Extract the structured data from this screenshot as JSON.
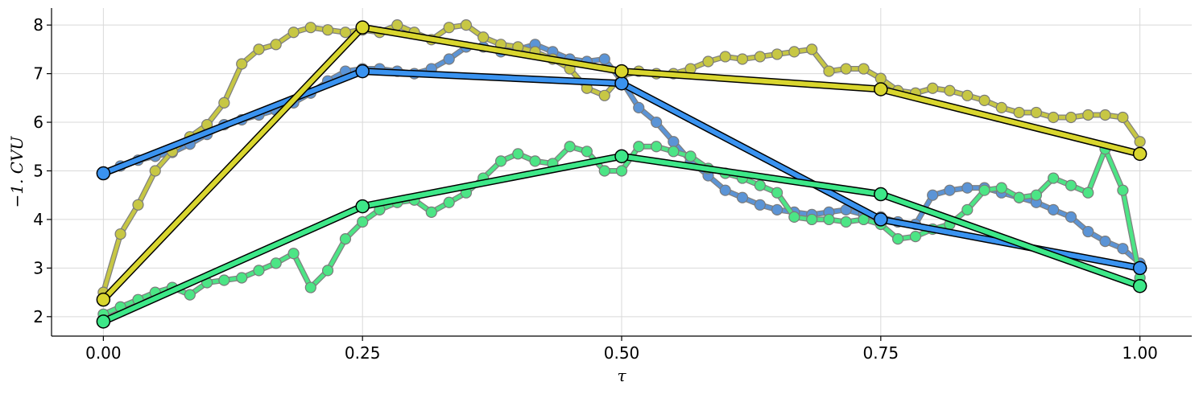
{
  "chart_data": {
    "type": "line",
    "xlabel": "τ",
    "ylabel": "−1. CVU",
    "xlim": [
      -0.1,
      2.1
    ],
    "ylim": [
      1.6,
      8.35
    ],
    "xticks": [
      "0.00",
      "0.25",
      "0.50",
      "0.75",
      "1.00"
    ],
    "xtick_positions": [
      0,
      0.5,
      1.0,
      1.5,
      2.0
    ],
    "yticks": [
      2,
      3,
      4,
      5,
      6,
      7,
      8
    ],
    "grid": true,
    "colors": {
      "blue_smooth": "#5b94d6",
      "blue_coarse": "#3a93f0",
      "yellow_smooth": "#c7c744",
      "yellow_coarse": "#d9d62e",
      "green_smooth": "#4ce585",
      "green_coarse": "#3de888",
      "edge": "#000000",
      "grid": "#d9d9d9"
    },
    "series": [
      {
        "kind": "smooth",
        "color": "#5b94d6",
        "x": [
          0.0,
          0.033,
          0.067,
          0.1,
          0.133,
          0.167,
          0.2,
          0.233,
          0.267,
          0.3,
          0.333,
          0.367,
          0.4,
          0.433,
          0.467,
          0.5,
          0.533,
          0.567,
          0.6,
          0.633,
          0.667,
          0.7,
          0.733,
          0.767,
          0.8,
          0.833,
          0.867,
          0.9,
          0.933,
          0.967,
          1.0,
          1.033,
          1.067,
          1.1,
          1.133,
          1.167,
          1.2,
          1.233,
          1.267,
          1.3,
          1.333,
          1.367,
          1.4,
          1.433,
          1.467,
          1.5,
          1.533,
          1.567,
          1.6,
          1.633,
          1.667,
          1.7,
          1.733,
          1.767,
          1.8,
          1.833,
          1.867,
          1.9,
          1.933,
          1.967,
          2.0
        ],
        "y": [
          4.95,
          5.1,
          5.22,
          5.3,
          5.38,
          5.55,
          5.75,
          5.95,
          6.05,
          6.15,
          6.25,
          6.4,
          6.6,
          6.85,
          7.05,
          7.1,
          7.1,
          7.05,
          7.0,
          7.1,
          7.3,
          7.55,
          7.55,
          7.45,
          7.5,
          7.6,
          7.45,
          7.3,
          7.25,
          7.3,
          6.85,
          6.3,
          6.0,
          5.6,
          5.2,
          4.9,
          4.6,
          4.45,
          4.3,
          4.2,
          4.15,
          4.1,
          4.15,
          4.2,
          4.1,
          4.05,
          3.95,
          3.9,
          4.5,
          4.6,
          4.65,
          4.65,
          4.55,
          4.45,
          4.35,
          4.2,
          4.05,
          3.75,
          3.55,
          3.4,
          3.1
        ]
      },
      {
        "kind": "smooth",
        "color": "#c7c744",
        "x": [
          0.0,
          0.033,
          0.067,
          0.1,
          0.133,
          0.167,
          0.2,
          0.233,
          0.267,
          0.3,
          0.333,
          0.367,
          0.4,
          0.433,
          0.467,
          0.5,
          0.533,
          0.567,
          0.6,
          0.633,
          0.667,
          0.7,
          0.733,
          0.767,
          0.8,
          0.833,
          0.867,
          0.9,
          0.933,
          0.967,
          1.0,
          1.033,
          1.067,
          1.1,
          1.133,
          1.167,
          1.2,
          1.233,
          1.267,
          1.3,
          1.333,
          1.367,
          1.4,
          1.433,
          1.467,
          1.5,
          1.533,
          1.567,
          1.6,
          1.633,
          1.667,
          1.7,
          1.733,
          1.767,
          1.8,
          1.833,
          1.867,
          1.9,
          1.933,
          1.967,
          2.0
        ],
        "y": [
          2.5,
          3.7,
          4.3,
          5.0,
          5.4,
          5.7,
          5.95,
          6.4,
          7.2,
          7.5,
          7.6,
          7.85,
          7.95,
          7.9,
          7.85,
          7.9,
          7.85,
          8.0,
          7.85,
          7.7,
          7.95,
          8.0,
          7.75,
          7.6,
          7.55,
          7.45,
          7.3,
          7.1,
          6.7,
          6.55,
          6.95,
          7.05,
          7.0,
          7.0,
          7.1,
          7.25,
          7.35,
          7.3,
          7.35,
          7.4,
          7.45,
          7.5,
          7.05,
          7.1,
          7.1,
          6.9,
          6.65,
          6.6,
          6.7,
          6.65,
          6.55,
          6.45,
          6.3,
          6.2,
          6.2,
          6.1,
          6.1,
          6.15,
          6.15,
          6.1,
          5.6
        ]
      },
      {
        "kind": "smooth",
        "color": "#4ce585",
        "x": [
          0.0,
          0.033,
          0.067,
          0.1,
          0.133,
          0.167,
          0.2,
          0.233,
          0.267,
          0.3,
          0.333,
          0.367,
          0.4,
          0.433,
          0.467,
          0.5,
          0.533,
          0.567,
          0.6,
          0.633,
          0.667,
          0.7,
          0.733,
          0.767,
          0.8,
          0.833,
          0.867,
          0.9,
          0.933,
          0.967,
          1.0,
          1.033,
          1.067,
          1.1,
          1.133,
          1.167,
          1.2,
          1.233,
          1.267,
          1.3,
          1.333,
          1.367,
          1.4,
          1.433,
          1.467,
          1.5,
          1.533,
          1.567,
          1.6,
          1.633,
          1.667,
          1.7,
          1.733,
          1.767,
          1.8,
          1.833,
          1.867,
          1.9,
          1.933,
          1.967,
          2.0
        ],
        "y": [
          2.05,
          2.2,
          2.35,
          2.5,
          2.6,
          2.45,
          2.7,
          2.75,
          2.8,
          2.95,
          3.1,
          3.3,
          2.6,
          2.95,
          3.6,
          3.95,
          4.2,
          4.35,
          4.4,
          4.15,
          4.35,
          4.55,
          4.85,
          5.2,
          5.35,
          5.2,
          5.15,
          5.5,
          5.4,
          5.0,
          5.0,
          5.5,
          5.5,
          5.4,
          5.3,
          5.05,
          4.95,
          4.85,
          4.7,
          4.55,
          4.05,
          4.0,
          4.0,
          3.95,
          4.0,
          3.9,
          3.6,
          3.65,
          3.8,
          3.9,
          4.2,
          4.6,
          4.65,
          4.45,
          4.5,
          4.85,
          4.7,
          4.55,
          5.45,
          4.6,
          2.8
        ]
      },
      {
        "kind": "coarse",
        "color": "#3a93f0",
        "x": [
          0.0,
          0.5,
          1.0,
          1.5,
          2.0
        ],
        "y": [
          4.95,
          7.05,
          6.8,
          4.0,
          3.0
        ]
      },
      {
        "kind": "coarse",
        "color": "#d9d62e",
        "x": [
          0.0,
          0.5,
          1.0,
          1.5,
          2.0
        ],
        "y": [
          2.35,
          7.95,
          7.05,
          6.68,
          5.35
        ]
      },
      {
        "kind": "coarse",
        "color": "#3de888",
        "x": [
          0.0,
          0.5,
          1.0,
          1.5,
          2.0
        ],
        "y": [
          1.9,
          4.27,
          5.3,
          4.52,
          2.63
        ]
      }
    ]
  }
}
